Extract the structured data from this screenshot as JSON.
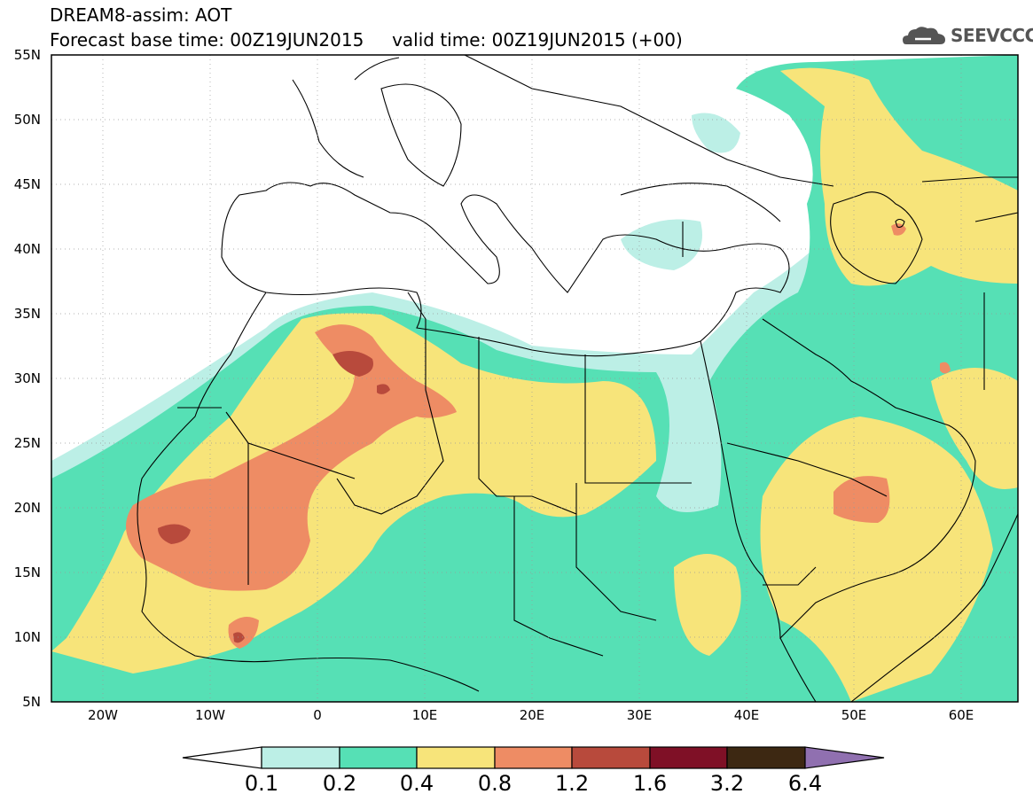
{
  "header": {
    "title_line1": "DREAM8-assim: AOT",
    "title_line2": "Forecast base time: 00Z19JUN2015     valid time: 00Z19JUN2015 (+00)",
    "logo": "SEEVCCC"
  },
  "map": {
    "lon_range": [
      -25,
      65
    ],
    "lat_range": [
      5,
      55
    ],
    "lat_labels": [
      "55N",
      "50N",
      "45N",
      "40N",
      "35N",
      "30N",
      "25N",
      "20N",
      "15N",
      "10N",
      "5N"
    ],
    "lon_labels": [
      "20W",
      "10W",
      "0",
      "10E",
      "20E",
      "30E",
      "40E",
      "50E",
      "60E"
    ]
  },
  "colorbar": {
    "colors": [
      "#ffffff",
      "#bcefe6",
      "#56e0b5",
      "#f7e47a",
      "#ee8c64",
      "#b84a3c",
      "#7f1026",
      "#3d2812",
      "#9070b0"
    ],
    "labels": [
      "0.1",
      "0.2",
      "0.4",
      "0.8",
      "1.2",
      "1.6",
      "3.2",
      "6.4"
    ]
  }
}
